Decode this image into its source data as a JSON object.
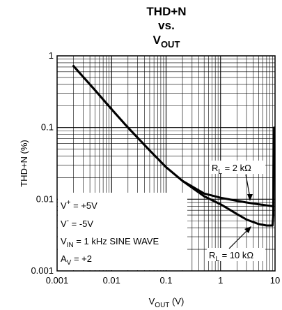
{
  "chart_data": {
    "type": "line",
    "title": {
      "line1": "THD+N",
      "line2": "vs.",
      "line3_main": "V",
      "line3_sub": "OUT"
    },
    "xlabel": {
      "main": "V",
      "sub": "OUT",
      "rest": " (V)"
    },
    "ylabel": "THD+N (%)",
    "x_scale": "log",
    "y_scale": "log",
    "xlim": [
      0.001,
      10
    ],
    "ylim": [
      0.001,
      1
    ],
    "x_ticks": [
      0.001,
      0.01,
      0.1,
      1,
      10
    ],
    "x_tick_labels": [
      "0.001",
      "0.01",
      "0.1",
      "1",
      "10"
    ],
    "y_ticks": [
      0.001,
      0.01,
      0.1,
      1
    ],
    "y_tick_labels": [
      "0.001",
      "0.01",
      "0.1",
      "1"
    ],
    "grid": true,
    "conditions": [
      {
        "main": "V",
        "sup": "+",
        "sub": "",
        "rest": " = +5V"
      },
      {
        "main": "V",
        "sup": "-",
        "sub": "",
        "rest": " = -5V"
      },
      {
        "main": "V",
        "sup": "",
        "sub": "IN",
        "rest": " = 1 kHz SINE WAVE"
      },
      {
        "main": "A",
        "sup": "",
        "sub": "V",
        "rest": " = +2"
      }
    ],
    "series": [
      {
        "name": "R_L = 2 kΩ",
        "label_main": "R",
        "label_sub": "L",
        "label_rest": " = 2 kΩ",
        "x": [
          0.002,
          0.005,
          0.01,
          0.02,
          0.05,
          0.1,
          0.2,
          0.5,
          1,
          2,
          3,
          5,
          7,
          9
        ],
        "y": [
          0.72,
          0.33,
          0.18,
          0.1,
          0.048,
          0.028,
          0.018,
          0.012,
          0.0105,
          0.0095,
          0.009,
          0.0085,
          0.0082,
          0.008
        ]
      },
      {
        "name": "R_L = 10 kΩ",
        "label_main": "R",
        "label_sub": "L",
        "label_rest": " = 10 kΩ",
        "x": [
          0.002,
          0.005,
          0.01,
          0.02,
          0.05,
          0.1,
          0.2,
          0.5,
          1,
          2,
          3,
          5,
          7,
          9,
          9.3,
          9.6
        ],
        "y": [
          0.72,
          0.33,
          0.18,
          0.1,
          0.048,
          0.028,
          0.018,
          0.011,
          0.0085,
          0.0062,
          0.0052,
          0.0045,
          0.0043,
          0.0043,
          0.006,
          0.1
        ]
      }
    ]
  }
}
